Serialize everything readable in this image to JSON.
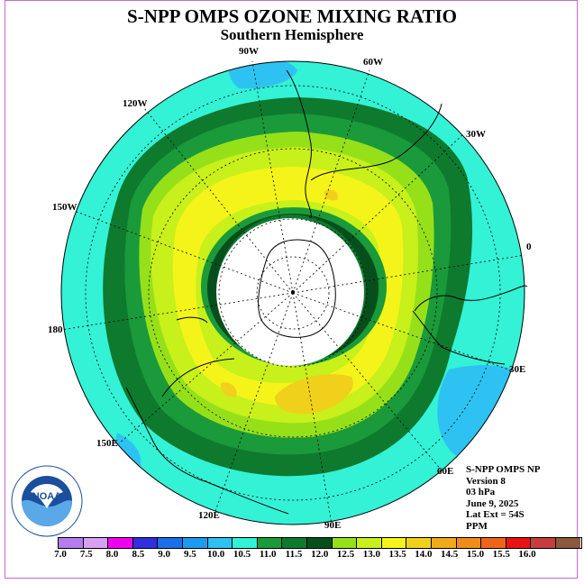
{
  "title": "S-NPP OMPS OZONE MIXING RATIO",
  "subtitle": "Southern Hemisphere",
  "longitude_labels": [
    "90W",
    "60W",
    "30W",
    "0",
    "30E",
    "60E",
    "90E",
    "120E",
    "150E",
    "180",
    "150W",
    "120W"
  ],
  "info": {
    "line1": "S-NPP OMPS NP",
    "line2": "Version 8",
    "line3": "03 hPa",
    "line4": "June 9, 2025",
    "line5": "Lat Ext = 54S",
    "line6": "PPM"
  },
  "logo_text": "NOAA",
  "colorbar": {
    "colors": [
      "#b57cf0",
      "#d8a0f5",
      "#f000f0",
      "#3030e0",
      "#1c6fe8",
      "#1e9af0",
      "#2ec2f2",
      "#2ff2d8",
      "#1a9a3a",
      "#0e7a2e",
      "#064f1c",
      "#96e01a",
      "#c8f01a",
      "#f4f41a",
      "#f0d01a",
      "#f0aa1a",
      "#f08c1a",
      "#f0641a",
      "#e81414",
      "#c83c3c",
      "#8a5a3a"
    ],
    "labels": [
      "7.0",
      "7.5",
      "8.0",
      "8.5",
      "9.0",
      "9.5",
      "10.0",
      "10.5",
      "11.0",
      "11.5",
      "12.0",
      "12.5",
      "13.0",
      "13.5",
      "14.0",
      "14.5",
      "15.0",
      "15.5",
      "16.0"
    ]
  }
}
